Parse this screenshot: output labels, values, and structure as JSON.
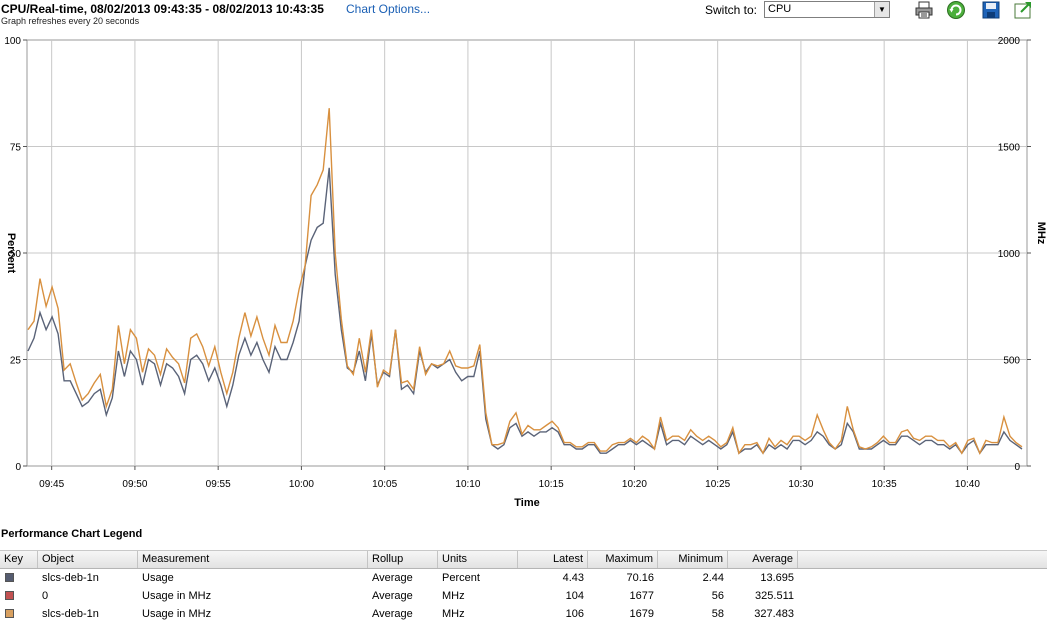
{
  "header": {
    "title": "CPU/Real-time, 08/02/2013 09:43:35 - 08/02/2013 10:43:35",
    "chart_options_label": "Chart Options...",
    "subtitle": "Graph refreshes every 20 seconds",
    "switch_to_label": "Switch to:",
    "switch_to_value": "CPU",
    "toolbar_icons": [
      "printer-icon",
      "refresh-icon",
      "save-icon",
      "export-icon"
    ]
  },
  "chart_data": {
    "type": "line",
    "xlabel": "Time",
    "ylabel_left": "Percent",
    "ylabel_right": "MHz",
    "y_left_ticks": [
      "100",
      "75",
      "50",
      "25",
      "0"
    ],
    "y_right_ticks": [
      "2000",
      "1500",
      "1000",
      "500",
      "0"
    ],
    "ylim_left": [
      0,
      100
    ],
    "ylim_right": [
      0,
      2000
    ],
    "x_ticks": [
      "09:45",
      "09:50",
      "09:55",
      "10:00",
      "10:05",
      "10:10",
      "10:15",
      "10:20",
      "10:25",
      "10:30",
      "10:35",
      "10:40"
    ],
    "grid": true,
    "series": [
      {
        "axis": "left",
        "color": "#5a6378",
        "values": [
          27,
          30,
          36,
          32,
          35,
          31,
          20,
          20,
          17,
          14,
          15,
          17,
          18,
          12,
          16,
          27,
          21,
          27,
          25,
          19,
          25,
          24,
          19,
          24,
          23,
          21,
          17,
          25,
          26,
          24,
          20,
          23,
          19,
          14,
          19,
          26,
          30,
          26,
          29,
          25,
          22,
          28,
          25,
          25,
          29,
          34,
          47,
          53,
          56,
          57,
          70,
          45,
          32,
          23,
          22,
          27,
          20,
          31,
          19,
          22,
          21,
          32,
          18,
          19,
          17,
          27,
          22,
          24,
          23,
          24,
          25,
          22,
          20,
          21,
          21,
          27,
          11,
          5,
          4,
          5,
          9,
          10,
          7,
          8,
          7,
          8,
          8,
          9,
          8,
          5,
          5,
          4,
          4,
          5,
          5,
          3,
          3,
          4,
          5,
          5,
          6,
          5,
          6,
          5,
          4,
          10,
          5,
          6,
          6,
          5,
          7,
          6,
          5,
          6,
          5,
          4,
          5,
          8,
          3,
          4,
          4,
          5,
          3,
          5,
          4,
          5,
          4,
          6,
          6,
          5,
          6,
          8,
          7,
          5,
          4,
          5,
          10,
          8,
          4,
          4,
          4,
          5,
          6,
          5,
          5,
          7,
          7,
          6,
          5,
          6,
          6,
          5,
          5,
          4,
          5,
          3,
          5,
          6,
          3,
          5,
          5,
          5,
          8,
          6,
          5,
          4
        ]
      },
      {
        "axis": "right",
        "color": "#d8903f",
        "values": [
          640,
          680,
          880,
          750,
          840,
          740,
          450,
          480,
          390,
          310,
          340,
          390,
          430,
          280,
          360,
          660,
          480,
          640,
          600,
          440,
          550,
          520,
          430,
          550,
          510,
          480,
          390,
          600,
          620,
          560,
          470,
          560,
          440,
          340,
          440,
          600,
          720,
          610,
          700,
          600,
          520,
          660,
          580,
          580,
          680,
          830,
          940,
          1270,
          1320,
          1390,
          1680,
          1000,
          690,
          470,
          430,
          600,
          440,
          640,
          370,
          450,
          430,
          640,
          390,
          400,
          360,
          560,
          430,
          480,
          470,
          480,
          540,
          470,
          460,
          460,
          470,
          570,
          250,
          100,
          100,
          110,
          210,
          250,
          150,
          190,
          170,
          170,
          190,
          210,
          180,
          110,
          110,
          90,
          90,
          110,
          110,
          70,
          70,
          100,
          110,
          110,
          130,
          110,
          140,
          120,
          80,
          230,
          120,
          140,
          140,
          120,
          170,
          140,
          120,
          140,
          120,
          90,
          110,
          180,
          60,
          100,
          100,
          110,
          60,
          130,
          90,
          120,
          100,
          140,
          140,
          120,
          140,
          240,
          170,
          110,
          80,
          120,
          280,
          170,
          90,
          80,
          90,
          110,
          140,
          110,
          110,
          160,
          170,
          130,
          120,
          140,
          140,
          120,
          120,
          90,
          110,
          60,
          120,
          130,
          60,
          120,
          110,
          110,
          230,
          140,
          110,
          90
        ]
      }
    ]
  },
  "legend": {
    "title": "Performance Chart Legend",
    "columns": [
      "Key",
      "Object",
      "Measurement",
      "Rollup",
      "Units",
      "Latest",
      "Maximum",
      "Minimum",
      "Average"
    ],
    "rows": [
      {
        "color": "#555c70",
        "object": "slcs-deb-1n",
        "measurement": "Usage",
        "rollup": "Average",
        "units": "Percent",
        "latest": "4.43",
        "maximum": "70.16",
        "minimum": "2.44",
        "average": "13.695"
      },
      {
        "color": "#c25151",
        "object": "0",
        "measurement": "Usage in MHz",
        "rollup": "Average",
        "units": "MHz",
        "latest": "104",
        "maximum": "1677",
        "minimum": "56",
        "average": "325.511"
      },
      {
        "color": "#d8a060",
        "object": "slcs-deb-1n",
        "measurement": "Usage in MHz",
        "rollup": "Average",
        "units": "MHz",
        "latest": "106",
        "maximum": "1679",
        "minimum": "58",
        "average": "327.483"
      }
    ]
  }
}
